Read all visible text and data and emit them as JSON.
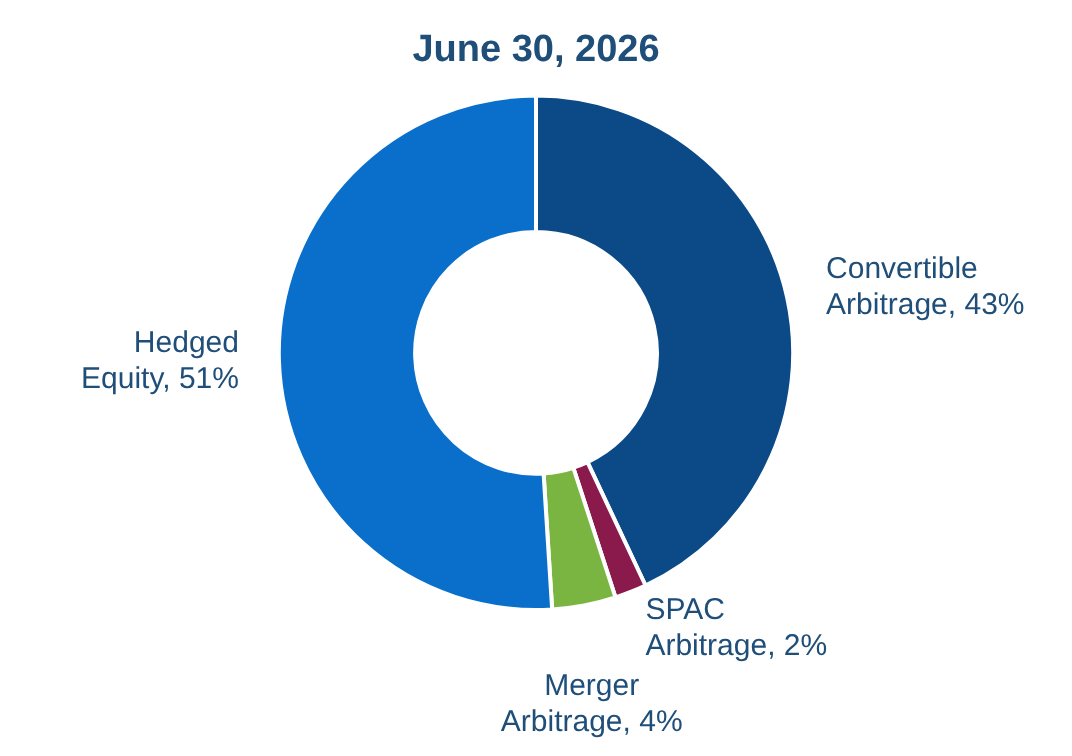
{
  "chart_data": {
    "type": "donut",
    "title": "June 30, 2026",
    "categories": [
      "Convertible Arbitrage",
      "SPAC Arbitrage",
      "Merger Arbitrage",
      "Hedged Equity"
    ],
    "values": [
      43,
      2,
      4,
      51
    ],
    "colors": [
      "#0b4a86",
      "#8a1a4c",
      "#7bb541",
      "#0a6fcb"
    ],
    "value_labels": [
      "43%",
      "2%",
      "4%",
      "51%"
    ]
  }
}
